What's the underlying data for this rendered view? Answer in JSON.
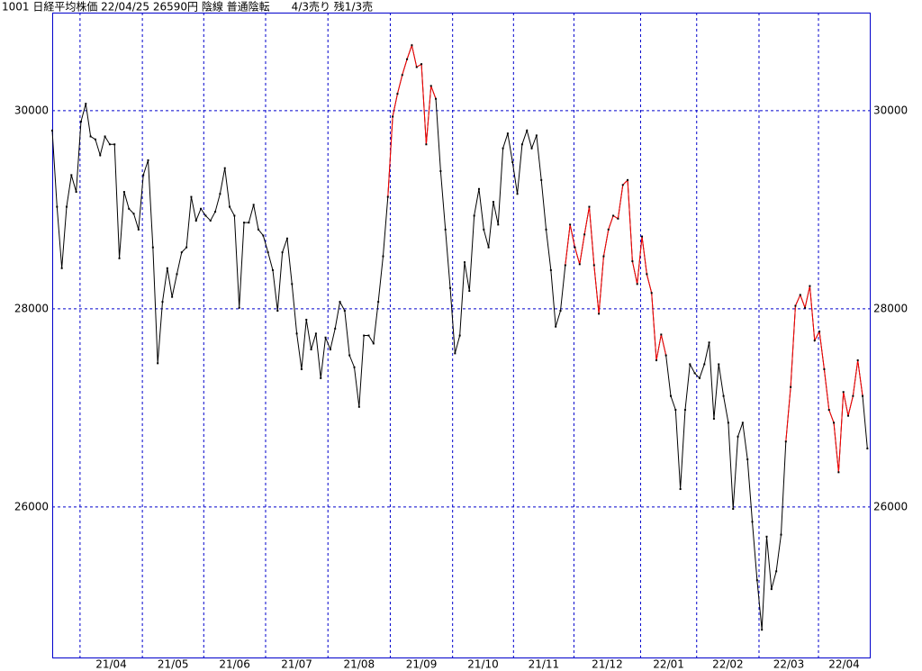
{
  "chart_data": {
    "type": "line",
    "title": "1001 日経平均株価 22/04/25 26590円 陰線 普通陰転　　4/3売り 残1/3売",
    "values": [
      29800,
      29030,
      28410,
      29030,
      29350,
      29180,
      29890,
      30070,
      29740,
      29710,
      29550,
      29740,
      29660,
      29660,
      28510,
      29180,
      29010,
      28960,
      28800,
      29350,
      29500,
      28620,
      27450,
      28070,
      28410,
      28120,
      28350,
      28570,
      28620,
      29130,
      28890,
      29010,
      28940,
      28890,
      28980,
      29160,
      29420,
      29030,
      28940,
      28010,
      28870,
      28870,
      29050,
      28800,
      28740,
      28570,
      28390,
      27980,
      28570,
      28710,
      28250,
      27750,
      27390,
      27890,
      27590,
      27750,
      27300,
      27710,
      27590,
      27800,
      28070,
      27980,
      27530,
      27410,
      27010,
      27730,
      27730,
      27650,
      28070,
      28530,
      29130,
      29940,
      30170,
      30360,
      30520,
      30660,
      30440,
      30470,
      29660,
      30250,
      30120,
      29390,
      28800,
      28210,
      27550,
      27730,
      28470,
      28180,
      28940,
      29210,
      28800,
      28620,
      29080,
      28850,
      29620,
      29770,
      29480,
      29160,
      29660,
      29800,
      29620,
      29750,
      29300,
      28800,
      28390,
      27820,
      27980,
      28440,
      28850,
      28620,
      28450,
      28750,
      29030,
      28440,
      27950,
      28530,
      28800,
      28940,
      28910,
      29250,
      29300,
      28480,
      28250,
      28730,
      28350,
      28160,
      27480,
      27740,
      27530,
      27120,
      26980,
      26180,
      26980,
      27440,
      27350,
      27300,
      27440,
      27660,
      26890,
      27440,
      27120,
      26850,
      25980,
      26710,
      26850,
      26480,
      25850,
      25260,
      24760,
      25700,
      25170,
      25350,
      25720,
      26660,
      27210,
      28030,
      28140,
      28010,
      28230,
      27680,
      27770,
      27390,
      26980,
      26850,
      26350,
      27160,
      26920,
      27120,
      27480,
      27120,
      26590
    ],
    "color": "#000000",
    "highlight": {
      "color": "#ff0000",
      "ranges": [
        [
          70,
          80
        ],
        [
          107,
          128
        ],
        [
          153,
          169
        ]
      ]
    },
    "xlim": [
      0,
      170.5
    ],
    "month_starts": [
      5.8,
      18.8,
      31.6,
      44.5,
      57.5,
      70.5,
      83.5,
      96.2,
      108.8,
      122.7,
      134.4,
      147.4,
      159.8
    ],
    "month_labels": [
      "21/04",
      "21/05",
      "21/06",
      "21/07",
      "21/08",
      "21/09",
      "21/10",
      "21/11",
      "21/12",
      "22/01",
      "22/02",
      "22/03",
      "22/04"
    ],
    "ylim": [
      24480,
      30990
    ],
    "yticks": [
      26000,
      28000,
      30000
    ],
    "grid": true
  }
}
